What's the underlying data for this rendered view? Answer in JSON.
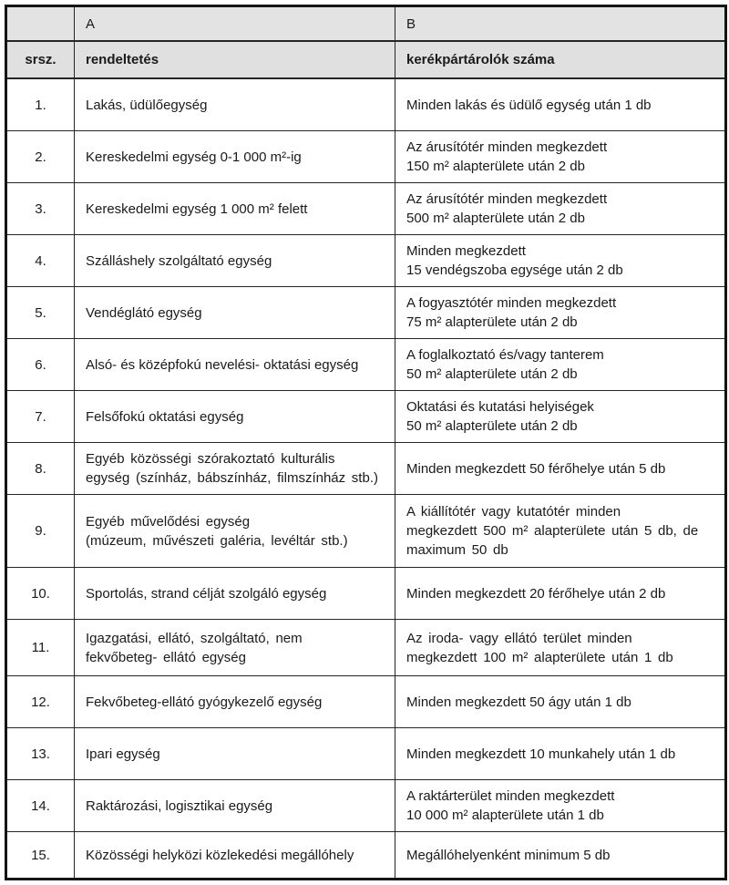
{
  "table": {
    "col_headers": {
      "a": "A",
      "b": "B"
    },
    "sub_headers": {
      "num": "srsz.",
      "a": "rendeltetés",
      "b": "kerékpártárolók száma"
    },
    "rows": [
      {
        "num": "1.",
        "a": "Lakás, üdülőegység",
        "b": "Minden lakás és üdülő egység után 1 db"
      },
      {
        "num": "2.",
        "a": "Kereskedelmi egység 0-1 000 m²-ig",
        "b": "Az árusítótér minden megkezdett\n150 m² alapterülete után 2 db"
      },
      {
        "num": "3.",
        "a": "Kereskedelmi egység 1 000 m² felett",
        "b": "Az árusítótér minden megkezdett\n500 m² alapterülete után 2 db"
      },
      {
        "num": "4.",
        "a": "Szálláshely szolgáltató egység",
        "b": "Minden megkezdett\n15 vendégszoba egysége után 2 db"
      },
      {
        "num": "5.",
        "a": "Vendéglátó egység",
        "b": "A fogyasztótér minden megkezdett\n75 m² alapterülete után 2 db"
      },
      {
        "num": "6.",
        "a": "Alsó- és középfokú nevelési- oktatási egység",
        "b": "A foglalkoztató és/vagy tanterem\n50 m² alapterülete után 2 db"
      },
      {
        "num": "7.",
        "a": "Felsőfokú oktatási egység",
        "b": "Oktatási és kutatási helyiségek\n50 m² alapterülete után 2 db"
      },
      {
        "num": "8.",
        "a": "Egyéb közösségi szórakoztató kulturális\negység (színház, bábszínház, filmszínház stb.)",
        "b": "Minden megkezdett 50 férőhelye után 5 db"
      },
      {
        "num": "9.",
        "a": "Egyéb művelődési egység\n(múzeum, művészeti galéria, levéltár stb.)",
        "b": "A kiállítótér vagy kutatótér minden\nmegkezdett 500 m² alapterülete után 5 db, de\nmaximum 50 db"
      },
      {
        "num": "10.",
        "a": "Sportolás, strand célját szolgáló egység",
        "b": "Minden megkezdett 20 férőhelye után 2 db"
      },
      {
        "num": "11.",
        "a": "Igazgatási, ellátó, szolgáltató, nem\nfekvőbeteg- ellátó egység",
        "b": "Az iroda- vagy ellátó terület minden\nmegkezdett 100 m² alapterülete után 1 db"
      },
      {
        "num": "12.",
        "a": "Fekvőbeteg-ellátó gyógykezelő egység",
        "b": "Minden megkezdett 50 ágy után 1 db"
      },
      {
        "num": "13.",
        "a": "Ipari egység",
        "b": "Minden megkezdett 10 munkahely után 1 db"
      },
      {
        "num": "14.",
        "a": "Raktározási, logisztikai egység",
        "b": "A raktárterület minden megkezdett\n10 000 m² alapterülete után 1 db"
      },
      {
        "num": "15.",
        "a": "Közösségi helyközi közlekedési megállóhely",
        "b": "Megállóhelyenként minimum 5 db"
      }
    ]
  },
  "colors": {
    "header_bg": "#e0e0e0",
    "border": "#262626",
    "text": "#1a1a1a"
  }
}
